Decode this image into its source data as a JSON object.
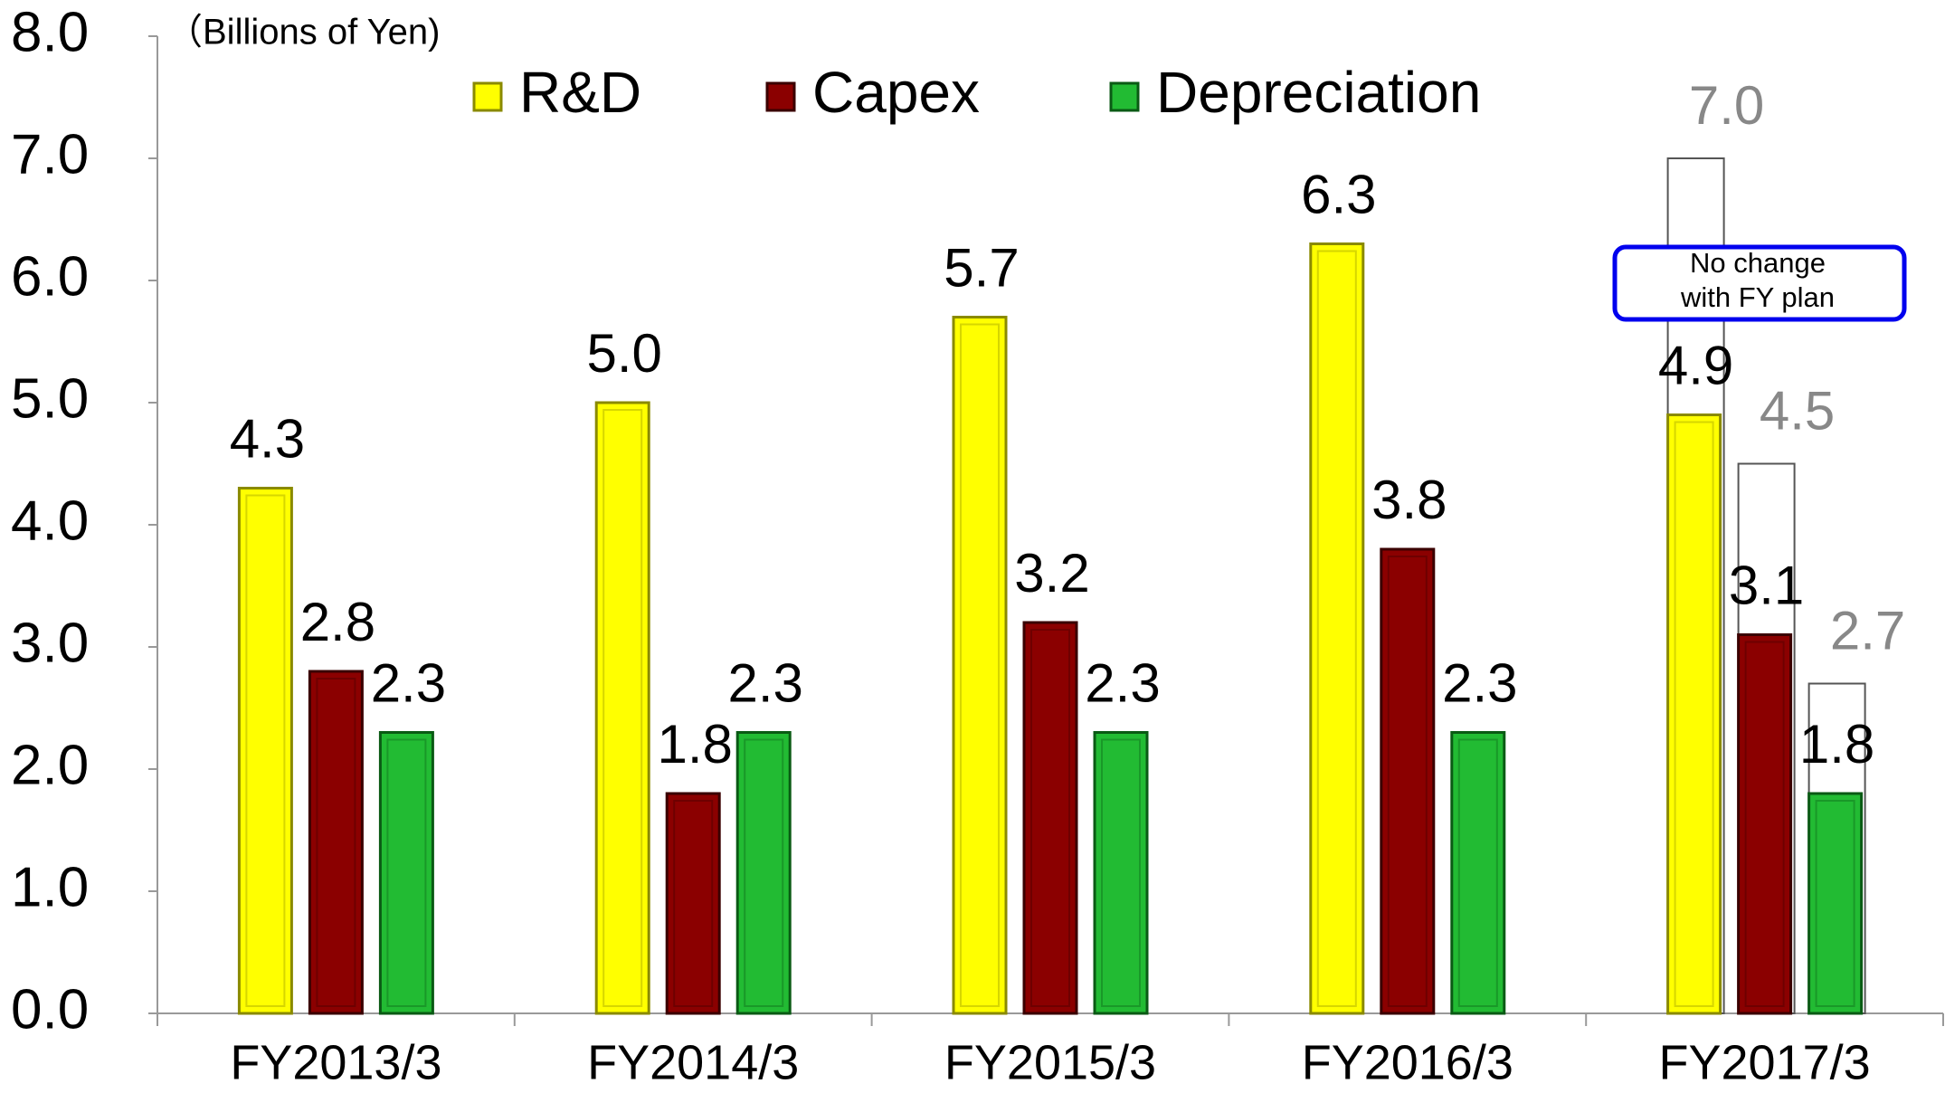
{
  "chart_data": {
    "type": "bar",
    "unit_label": "（Billions of Yen)",
    "categories": [
      "FY2013/3",
      "FY2014/3",
      "FY2015/3",
      "FY2016/3",
      "FY2017/3"
    ],
    "series": [
      {
        "name": "R&D",
        "color": "#ffff00",
        "edge": "#8a8a00",
        "values": [
          4.3,
          5.0,
          5.7,
          6.3,
          4.9
        ],
        "value_labels": [
          "4.3",
          "5.0",
          "5.7",
          "6.3",
          "4.9"
        ],
        "plan_values": [
          null,
          null,
          null,
          null,
          7.0
        ],
        "plan_value_labels": [
          null,
          null,
          null,
          null,
          "7.0"
        ]
      },
      {
        "name": "Capex",
        "color": "#8b0000",
        "edge": "#3a0000",
        "values": [
          2.8,
          1.8,
          3.2,
          3.8,
          3.1
        ],
        "value_labels": [
          "2.8",
          "1.8",
          "3.2",
          "3.8",
          "3.1"
        ],
        "plan_values": [
          null,
          null,
          null,
          null,
          4.5
        ],
        "plan_value_labels": [
          null,
          null,
          null,
          null,
          "4.5"
        ]
      },
      {
        "name": "Depreciation",
        "color": "#22bb33",
        "edge": "#0a5a14",
        "values": [
          2.3,
          2.3,
          2.3,
          2.3,
          1.8
        ],
        "value_labels": [
          "2.3",
          "2.3",
          "2.3",
          "2.3",
          "1.8"
        ],
        "plan_values": [
          null,
          null,
          null,
          null,
          2.7
        ],
        "plan_value_labels": [
          null,
          null,
          null,
          null,
          "2.7"
        ]
      }
    ],
    "plan_color": "#888888",
    "annotation": [
      "No change",
      "with FY plan"
    ],
    "annotation_color": "#0000ee",
    "ylim": [
      0,
      8
    ],
    "yticks": [
      {
        "value": 0,
        "label": "0.0"
      },
      {
        "value": 1,
        "label": "1.0"
      },
      {
        "value": 2,
        "label": "2.0"
      },
      {
        "value": 3,
        "label": "3.0"
      },
      {
        "value": 4,
        "label": "4.0"
      },
      {
        "value": 5,
        "label": "5.0"
      },
      {
        "value": 6,
        "label": "6.0"
      },
      {
        "value": 7,
        "label": "7.0"
      },
      {
        "value": 8,
        "label": "8.0"
      }
    ],
    "grid": false
  }
}
